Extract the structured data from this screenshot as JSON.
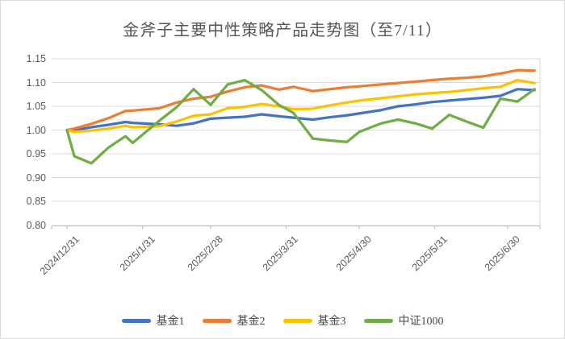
{
  "chart": {
    "title": "金斧子主要中性策略产品走势图（至7/11）"
  },
  "chart_data": {
    "type": "line",
    "title": "金斧子主要中性策略产品走势图（至7/11）",
    "xlabel": "",
    "ylabel": "",
    "ylim": [
      0.8,
      1.15
    ],
    "y_ticks": [
      "1.15",
      "1.10",
      "1.05",
      "1.00",
      "0.95",
      "0.90",
      "0.85",
      "0.80"
    ],
    "y_tick_values": [
      1.15,
      1.1,
      1.05,
      1.0,
      0.95,
      0.9,
      0.85,
      0.8
    ],
    "grid": true,
    "legend_position": "bottom",
    "x_dates": [
      "2024/12/31",
      "2025/1/3",
      "2025/1/10",
      "2025/1/17",
      "2025/1/24",
      "2025/1/27",
      "2025/2/7",
      "2025/2/14",
      "2025/2/21",
      "2025/2/28",
      "2025/3/7",
      "2025/3/14",
      "2025/3/21",
      "2025/3/28",
      "2025/4/3",
      "2025/4/11",
      "2025/4/18",
      "2025/4/25",
      "2025/4/30",
      "2025/5/9",
      "2025/5/16",
      "2025/5/23",
      "2025/5/30",
      "2025/6/6",
      "2025/6/13",
      "2025/6/20",
      "2025/6/27",
      "2025/7/4",
      "2025/7/11"
    ],
    "day_offsets": [
      0,
      3,
      10,
      17,
      24,
      27,
      38,
      45,
      52,
      59,
      66,
      73,
      80,
      87,
      93,
      101,
      108,
      115,
      120,
      129,
      136,
      143,
      150,
      157,
      164,
      171,
      178,
      185,
      192
    ],
    "x_tick_labels": [
      "2024/12/31",
      "2025/1/31",
      "2025/2/28",
      "2025/3/31",
      "2025/4/30",
      "2025/5/31",
      "2025/6/30"
    ],
    "x_tick_day_offsets": [
      0,
      31,
      59,
      90,
      120,
      151,
      181
    ],
    "series": [
      {
        "name": "基金1",
        "color": "#4472C4",
        "values": [
          1.0,
          0.999,
          1.006,
          1.011,
          1.017,
          1.015,
          1.012,
          1.009,
          1.014,
          1.024,
          1.026,
          1.028,
          1.033,
          1.029,
          1.026,
          1.022,
          1.027,
          1.031,
          1.035,
          1.042,
          1.05,
          1.054,
          1.059,
          1.062,
          1.065,
          1.068,
          1.072,
          1.086,
          1.084
        ]
      },
      {
        "name": "基金2",
        "color": "#ED7D31",
        "values": [
          1.0,
          1.003,
          1.013,
          1.025,
          1.04,
          1.041,
          1.046,
          1.058,
          1.066,
          1.07,
          1.081,
          1.09,
          1.094,
          1.085,
          1.091,
          1.082,
          1.086,
          1.09,
          1.092,
          1.096,
          1.099,
          1.102,
          1.105,
          1.108,
          1.11,
          1.113,
          1.119,
          1.126,
          1.125
        ]
      },
      {
        "name": "基金3",
        "color": "#FFC000",
        "values": [
          1.0,
          0.996,
          0.999,
          1.003,
          1.009,
          1.006,
          1.008,
          1.018,
          1.03,
          1.033,
          1.046,
          1.049,
          1.055,
          1.05,
          1.044,
          1.045,
          1.052,
          1.058,
          1.062,
          1.067,
          1.071,
          1.075,
          1.078,
          1.08,
          1.084,
          1.088,
          1.091,
          1.105,
          1.099
        ]
      },
      {
        "name": "中证1000",
        "color": "#70AD47",
        "values": [
          1.0,
          0.945,
          0.93,
          0.963,
          0.987,
          0.973,
          1.02,
          1.048,
          1.086,
          1.053,
          1.096,
          1.105,
          1.084,
          1.053,
          1.036,
          0.982,
          0.978,
          0.975,
          0.996,
          1.014,
          1.022,
          1.014,
          1.003,
          1.032,
          1.018,
          1.005,
          1.066,
          1.06,
          1.086
        ]
      }
    ],
    "colors": {
      "gridline": "#d9d9d9",
      "axis_line": "#bfbfbf",
      "text": "#595959"
    }
  }
}
